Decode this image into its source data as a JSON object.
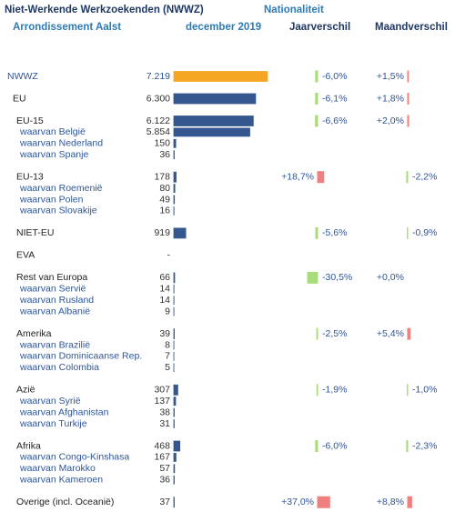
{
  "chart_data": {
    "type": "table-bar",
    "title": "Niet-Werkende Werkzoekenden (NWWZ)",
    "subtitle": "Nationaliteit",
    "region": "Arrondissement Aalst",
    "categories": [
      "NWWZ",
      "EU",
      "EU-15",
      "waarvan België",
      "waarvan Nederland",
      "waarvan Spanje",
      "EU-13",
      "waarvan Roemenië",
      "waarvan Polen",
      "waarvan Slovakije",
      "NIET-EU",
      "EVA",
      "Rest van Europa",
      "waarvan Servië",
      "waarvan Rusland",
      "waarvan Albanië",
      "Amerika",
      "waarvan Brazilië",
      "waarvan Dominicaanse Rep.",
      "waarvan Colombia",
      "Azië",
      "waarvan Syrië",
      "waarvan Afghanistan",
      "waarvan Turkije",
      "Afrika",
      "waarvan Congo-Kinshasa",
      "waarvan Marokko",
      "waarvan Kameroen",
      "Overige (incl. Oceanië)"
    ],
    "series": [
      {
        "name": "december 2019",
        "color": "#34578f",
        "first_color": "#f5a623",
        "values": [
          7219,
          6300,
          6122,
          5854,
          150,
          36,
          178,
          80,
          49,
          16,
          919,
          null,
          66,
          14,
          14,
          9,
          39,
          8,
          7,
          5,
          307,
          137,
          38,
          31,
          468,
          167,
          57,
          36,
          37
        ],
        "value_labels": [
          "7.219",
          "6.300",
          "6.122",
          "5.854",
          "150",
          "36",
          "178",
          "80",
          "49",
          "16",
          "919",
          "-",
          "66",
          "14",
          "14",
          "9",
          "39",
          "8",
          "7",
          "5",
          "307",
          "137",
          "38",
          "31",
          "468",
          "167",
          "57",
          "36",
          "37"
        ]
      },
      {
        "name": "Jaarverschil",
        "positive_color": "#f07f7f",
        "negative_color": "#a9dc7a",
        "values": [
          -6.0,
          -6.1,
          -6.6,
          null,
          null,
          null,
          18.7,
          null,
          null,
          null,
          -5.6,
          null,
          -30.5,
          null,
          null,
          null,
          -2.5,
          null,
          null,
          null,
          -1.9,
          null,
          null,
          null,
          -6.0,
          null,
          null,
          null,
          37.0
        ],
        "value_labels": [
          "-6,0%",
          "-6,1%",
          "-6,6%",
          null,
          null,
          null,
          "+18,7%",
          null,
          null,
          null,
          "-5,6%",
          null,
          "-30,5%",
          null,
          null,
          null,
          "-2,5%",
          null,
          null,
          null,
          "-1,9%",
          null,
          null,
          null,
          "-6,0%",
          null,
          null,
          null,
          "+37,0%"
        ]
      },
      {
        "name": "Maandverschil",
        "positive_color": "#f07f7f",
        "negative_color": "#a9dc7a",
        "values": [
          1.5,
          1.8,
          2.0,
          null,
          null,
          null,
          -2.2,
          null,
          null,
          null,
          -0.9,
          null,
          0.0,
          null,
          null,
          null,
          5.4,
          null,
          null,
          null,
          -1.0,
          null,
          null,
          null,
          -2.3,
          null,
          null,
          null,
          8.8
        ],
        "value_labels": [
          "+1,5%",
          "+1,8%",
          "+2,0%",
          null,
          null,
          null,
          "-2,2%",
          null,
          null,
          null,
          "-0,9%",
          null,
          "+0,0%",
          null,
          null,
          null,
          "+5,4%",
          null,
          null,
          null,
          "-1,0%",
          null,
          null,
          null,
          "-2,3%",
          null,
          null,
          null,
          "+8,8%"
        ]
      }
    ]
  }
}
